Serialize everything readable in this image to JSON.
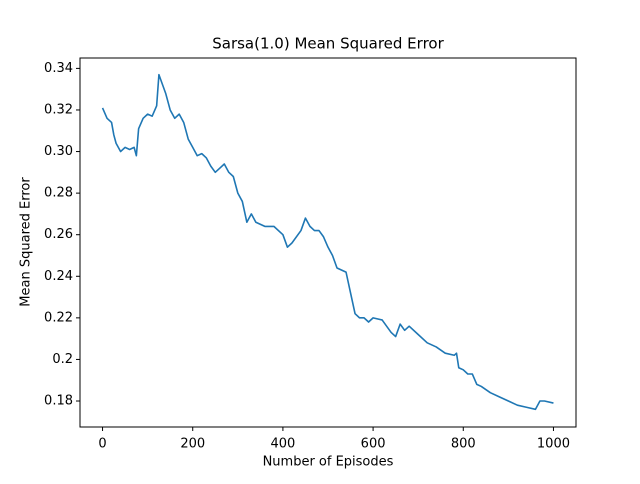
{
  "chart_data": {
    "type": "line",
    "title": "Sarsa(1.0) Mean Squared Error",
    "x_label": "Number of Episodes",
    "y_label": "Mean Squared Error",
    "x": [
      0,
      10,
      20,
      25,
      30,
      40,
      50,
      60,
      70,
      75,
      80,
      90,
      100,
      110,
      120,
      125,
      130,
      140,
      150,
      160,
      170,
      180,
      190,
      200,
      210,
      220,
      230,
      240,
      250,
      260,
      270,
      280,
      290,
      300,
      310,
      320,
      330,
      340,
      360,
      380,
      400,
      410,
      420,
      440,
      450,
      460,
      470,
      480,
      490,
      500,
      510,
      520,
      540,
      550,
      560,
      570,
      580,
      590,
      600,
      620,
      640,
      650,
      660,
      670,
      680,
      700,
      720,
      740,
      760,
      780,
      785,
      790,
      800,
      810,
      820,
      830,
      840,
      860,
      880,
      900,
      920,
      940,
      960,
      970,
      980,
      1000
    ],
    "series": [
      {
        "name": "Sarsa(1.0)",
        "color": "#1f77b4",
        "values": [
          0.321,
          0.316,
          0.314,
          0.308,
          0.304,
          0.3,
          0.302,
          0.301,
          0.302,
          0.298,
          0.311,
          0.316,
          0.318,
          0.317,
          0.322,
          0.337,
          0.334,
          0.328,
          0.32,
          0.316,
          0.318,
          0.314,
          0.306,
          0.302,
          0.298,
          0.299,
          0.297,
          0.293,
          0.29,
          0.292,
          0.294,
          0.29,
          0.288,
          0.28,
          0.276,
          0.266,
          0.27,
          0.266,
          0.264,
          0.264,
          0.26,
          0.254,
          0.256,
          0.262,
          0.268,
          0.264,
          0.262,
          0.262,
          0.259,
          0.254,
          0.25,
          0.244,
          0.242,
          0.232,
          0.222,
          0.22,
          0.22,
          0.218,
          0.22,
          0.219,
          0.213,
          0.211,
          0.217,
          0.214,
          0.216,
          0.212,
          0.208,
          0.206,
          0.203,
          0.202,
          0.203,
          0.196,
          0.195,
          0.193,
          0.193,
          0.188,
          0.187,
          0.184,
          0.182,
          0.18,
          0.178,
          0.177,
          0.176,
          0.18,
          0.18,
          0.179
        ]
      }
    ],
    "xlim": [
      -50,
      1050
    ],
    "ylim": [
      0.1675,
      0.345
    ],
    "xticks": [
      0,
      200,
      400,
      600,
      800,
      1000
    ],
    "yticks": [
      0.18,
      0.2,
      {
        "value": 0.22,
        "label": "0.22"
      },
      0.24,
      0.26,
      0.28,
      {
        "value": 0.3,
        "label": "0.30"
      },
      0.32,
      0.34
    ]
  }
}
